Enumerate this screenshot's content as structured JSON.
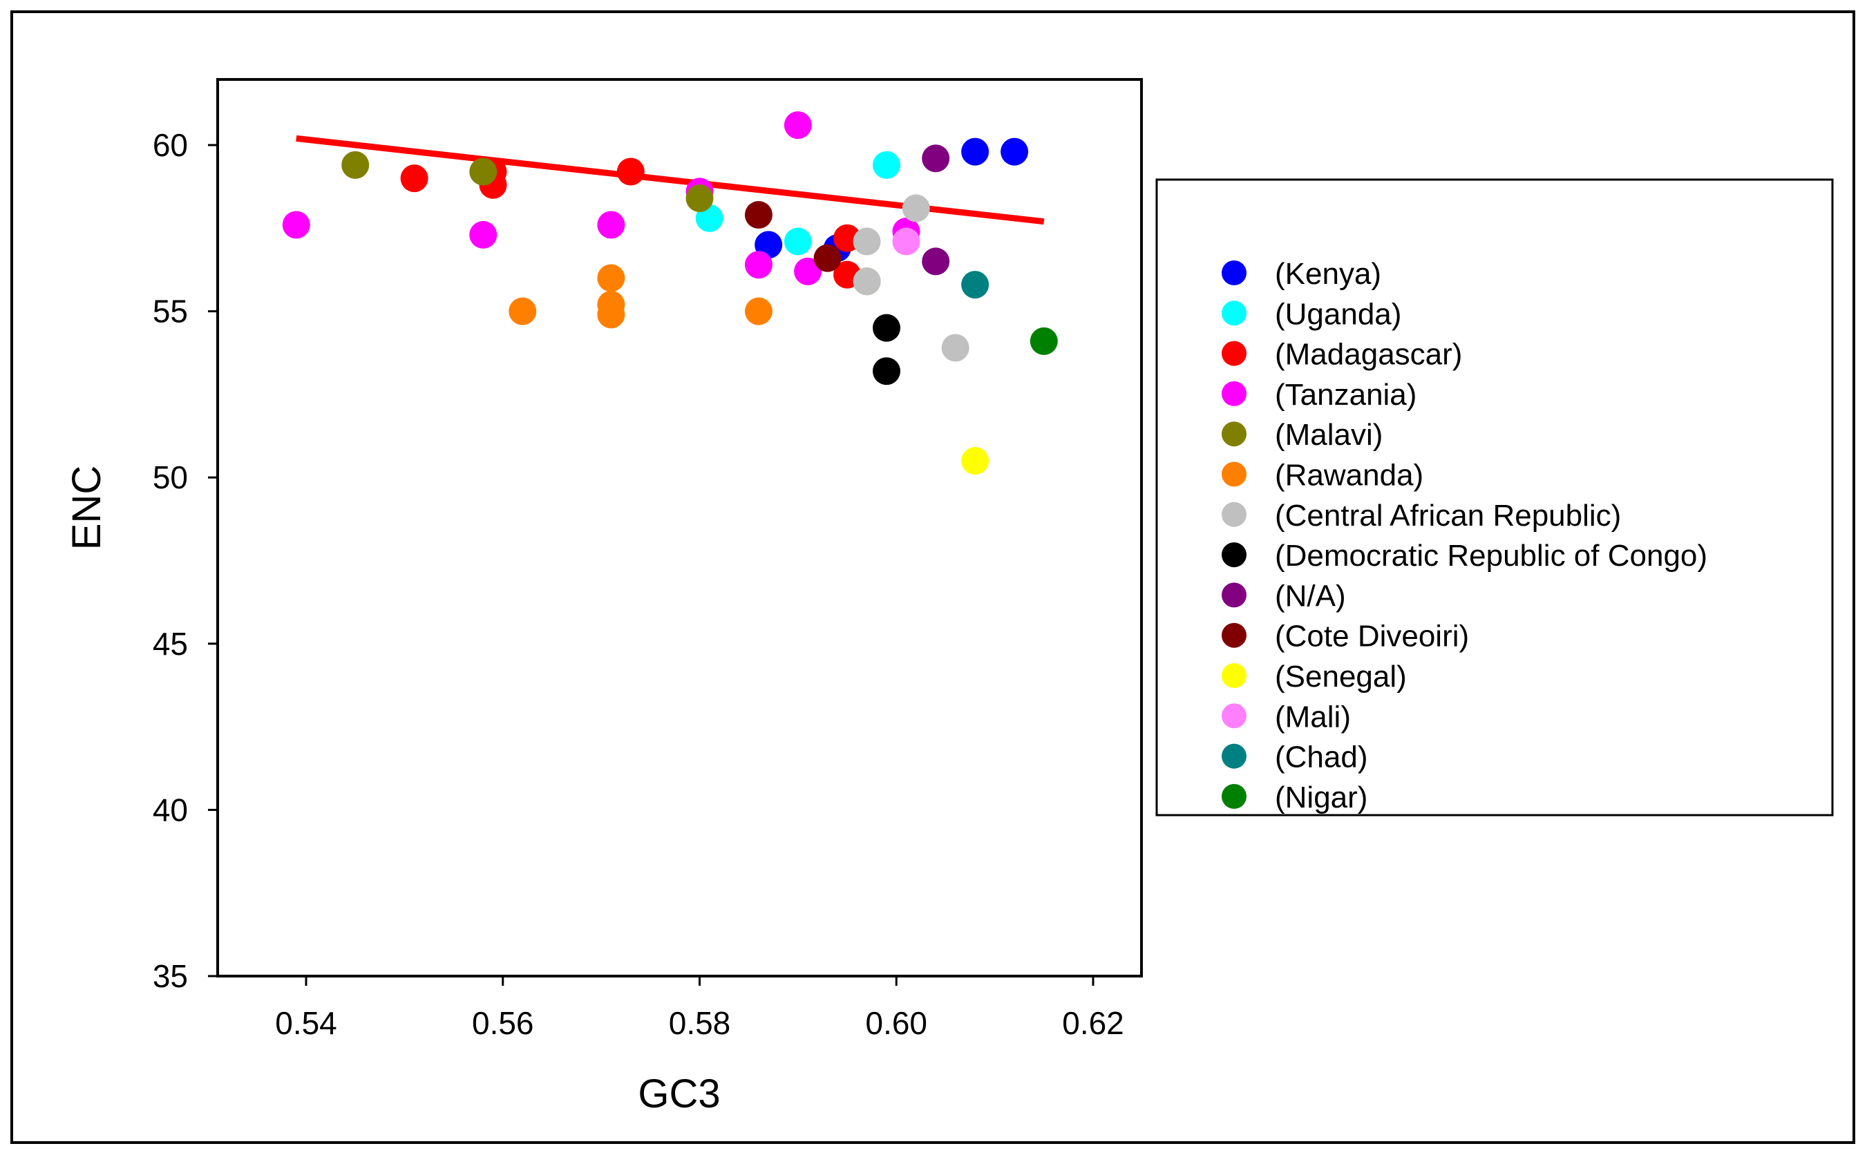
{
  "chart_data": {
    "type": "scatter",
    "xlabel": "GC3",
    "ylabel": "ENC",
    "xlim": [
      0.53,
      0.625
    ],
    "ylim": [
      35,
      62
    ],
    "xticks": [
      0.54,
      0.56,
      0.58,
      0.6,
      0.62
    ],
    "xtick_labels": [
      "0.54",
      "0.56",
      "0.58",
      "0.60",
      "0.62"
    ],
    "yticks": [
      35,
      40,
      45,
      50,
      55,
      60
    ],
    "ytick_labels": [
      "35",
      "40",
      "45",
      "50",
      "55",
      "60"
    ],
    "grid": false,
    "legend_position": "right",
    "trend_line": {
      "color": "#ff0000",
      "x": [
        0.539,
        0.615
      ],
      "y": [
        60.2,
        57.7
      ]
    },
    "series": [
      {
        "name": "(Kenya)",
        "color": "#0000ff",
        "x": [
          0.608,
          0.612,
          0.587,
          0.594
        ],
        "y": [
          59.8,
          59.8,
          57.0,
          56.9
        ]
      },
      {
        "name": "(Uganda)",
        "color": "#00ffff",
        "x": [
          0.599,
          0.581,
          0.59
        ],
        "y": [
          59.4,
          57.8,
          57.1
        ]
      },
      {
        "name": "(Madagascar)",
        "color": "#ff0000",
        "x": [
          0.551,
          0.559,
          0.559,
          0.573,
          0.595,
          0.595
        ],
        "y": [
          59.0,
          59.2,
          58.8,
          59.2,
          57.2,
          56.1
        ]
      },
      {
        "name": "(Tanzania)",
        "color": "#ff00ff",
        "x": [
          0.539,
          0.558,
          0.571,
          0.59,
          0.586,
          0.591,
          0.601,
          0.58
        ],
        "y": [
          57.6,
          57.3,
          57.6,
          60.6,
          56.4,
          56.2,
          57.4,
          58.6
        ]
      },
      {
        "name": "(Malavi)",
        "color": "#808000",
        "x": [
          0.545,
          0.558,
          0.58,
          0.597
        ],
        "y": [
          59.4,
          59.2,
          58.4,
          55.9
        ]
      },
      {
        "name": "(Rawanda)",
        "color": "#ff8000",
        "x": [
          0.562,
          0.571,
          0.571,
          0.571,
          0.586
        ],
        "y": [
          55.0,
          56.0,
          55.2,
          54.9,
          55.0
        ]
      },
      {
        "name": "(Central African Republic)",
        "color": "#c0c0c0",
        "x": [
          0.602,
          0.597,
          0.597,
          0.606
        ],
        "y": [
          58.1,
          57.1,
          55.9,
          53.9
        ]
      },
      {
        "name": "(Democratic Republic of Congo)",
        "color": "#000000",
        "x": [
          0.599,
          0.599
        ],
        "y": [
          54.5,
          53.2
        ]
      },
      {
        "name": "(N/A)",
        "color": "#800080",
        "x": [
          0.604,
          0.604
        ],
        "y": [
          59.6,
          56.5
        ]
      },
      {
        "name": "(Cote Diveoiri)",
        "color": "#800000",
        "x": [
          0.586,
          0.593
        ],
        "y": [
          57.9,
          56.6
        ]
      },
      {
        "name": "(Senegal)",
        "color": "#ffff00",
        "x": [
          0.608
        ],
        "y": [
          50.5
        ]
      },
      {
        "name": "(Mali)",
        "color": "#ff80ff",
        "x": [
          0.601
        ],
        "y": [
          57.1
        ]
      },
      {
        "name": "(Chad)",
        "color": "#008080",
        "x": [
          0.608
        ],
        "y": [
          55.8
        ]
      },
      {
        "name": "(Nigar)",
        "color": "#008000",
        "x": [
          0.615
        ],
        "y": [
          54.1
        ]
      }
    ]
  }
}
